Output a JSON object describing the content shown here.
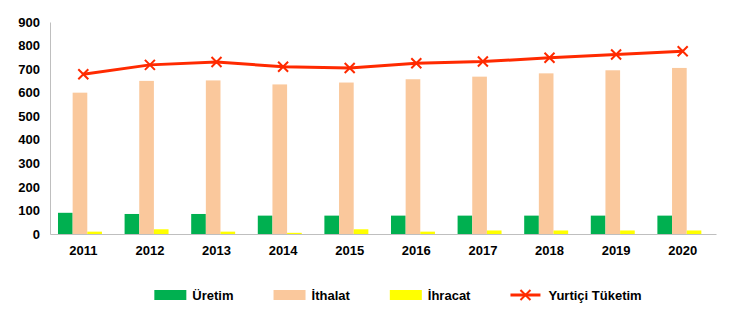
{
  "chart_data": {
    "type": "bar",
    "categories": [
      "2011",
      "2012",
      "2013",
      "2014",
      "2015",
      "2016",
      "2017",
      "2018",
      "2019",
      "2020"
    ],
    "series": [
      {
        "name": "Üretim",
        "type": "bar",
        "color": "#00b050",
        "values": [
          90,
          85,
          85,
          78,
          78,
          78,
          78,
          78,
          78,
          78
        ]
      },
      {
        "name": "İthalat",
        "type": "bar",
        "color": "#fac89c",
        "values": [
          600,
          650,
          652,
          635,
          643,
          657,
          668,
          682,
          695,
          705
        ]
      },
      {
        "name": "İhracat",
        "type": "bar",
        "color": "#ffff00",
        "values": [
          10,
          20,
          10,
          5,
          20,
          10,
          15,
          15,
          15,
          15
        ]
      },
      {
        "name": "Yurtiçi Tüketim",
        "type": "line",
        "color": "#ff2a00",
        "marker": "x",
        "values": [
          678,
          718,
          730,
          710,
          705,
          725,
          732,
          748,
          762,
          776
        ]
      }
    ],
    "ylim": [
      0,
      900
    ],
    "yticks": [
      0,
      100,
      200,
      300,
      400,
      500,
      600,
      700,
      800,
      900
    ],
    "grid": false,
    "legend": "bottom"
  }
}
